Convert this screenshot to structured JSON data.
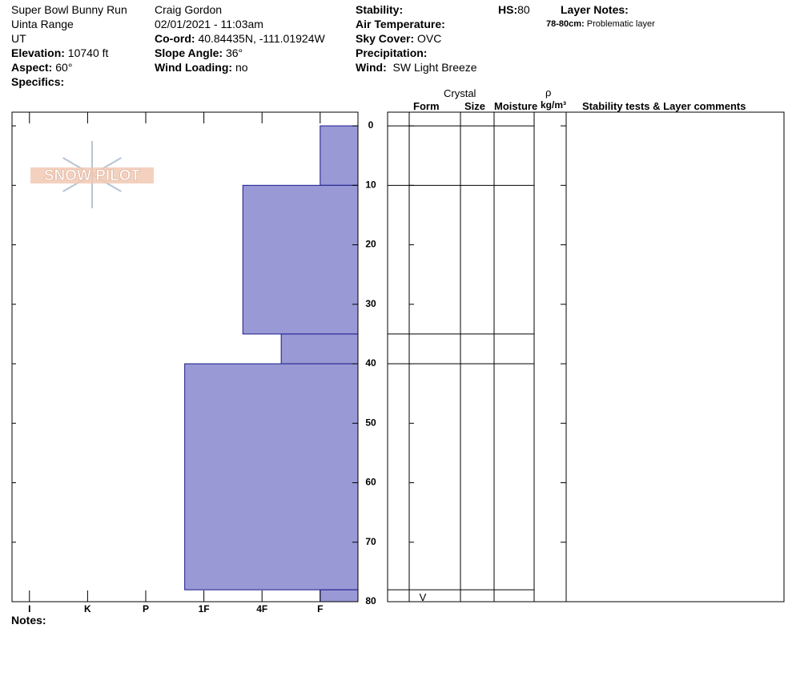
{
  "header": {
    "location": "Super Bowl Bunny Run",
    "range": "Uinta Range",
    "state": "UT",
    "elevation": {
      "label": "Elevation:",
      "value": "10740 ft"
    },
    "aspect": {
      "label": "Aspect:",
      "value": "60°"
    },
    "specifics": {
      "label": "Specifics:"
    },
    "observer": "Craig Gordon",
    "datetime": "02/01/2021 - 11:03am",
    "coord": {
      "label": "Co-ord:",
      "value": "40.84435N, -111.01924W"
    },
    "slope_angle": {
      "label": "Slope Angle:",
      "value": "36°"
    },
    "wind_loading": {
      "label": "Wind Loading:",
      "value": "no"
    },
    "stability": {
      "label": "Stability:"
    },
    "air_temperature": {
      "label": "Air Temperature:"
    },
    "sky_cover": {
      "label": "Sky Cover:",
      "value": "OVC"
    },
    "precipitation": {
      "label": "Precipitation:"
    },
    "wind": {
      "label": "Wind:",
      "value": "SW Light Breeze"
    },
    "hs": {
      "label": "HS:",
      "value": "80"
    },
    "layer_notes": {
      "label": "Layer Notes:",
      "entries": [
        {
          "range": "78-80cm:",
          "text": "Problematic layer"
        }
      ]
    }
  },
  "logo": "SNOW PILOT",
  "notes": {
    "label": "Notes:"
  },
  "table_headers": {
    "crystal": "Crystal",
    "form": "Form",
    "size": "Size",
    "moisture": "Moisture",
    "rho": "ρ",
    "density_unit": "kg/m³",
    "comments": "Stability tests & Layer comments"
  },
  "chart_data": {
    "type": "hardness-profile",
    "xlim": [
      6.3,
      0.35
    ],
    "xticks": [
      {
        "value": 6,
        "label": "I"
      },
      {
        "value": 5,
        "label": "K"
      },
      {
        "value": 4,
        "label": "P"
      },
      {
        "value": 3,
        "label": "1F"
      },
      {
        "value": 2,
        "label": "4F"
      },
      {
        "value": 1,
        "label": "F"
      }
    ],
    "ylim": [
      -2.3,
      80
    ],
    "yticks": [
      0,
      10,
      20,
      30,
      40,
      50,
      60,
      70,
      80
    ],
    "color": "#9999d6",
    "layers": [
      {
        "top": 0,
        "bottom": 10,
        "hardness": 1
      },
      {
        "top": 10,
        "bottom": 35,
        "hardness": 2.33
      },
      {
        "top": 35,
        "bottom": 40,
        "hardness": 1.67
      },
      {
        "top": 40,
        "bottom": 78,
        "hardness": 3.33
      },
      {
        "top": 78,
        "bottom": 80,
        "hardness": 1,
        "form": "V"
      }
    ]
  }
}
